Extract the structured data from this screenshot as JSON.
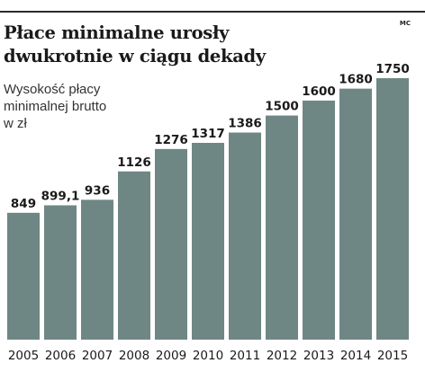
{
  "header": {
    "title_lines": [
      "Płace minimalne urosły",
      "dwukrotnie w ciągu dekady"
    ],
    "subtitle_lines": [
      "Wysokość płacy",
      "minimalnej brutto",
      "w zł"
    ],
    "credit": "MC"
  },
  "chart_data": {
    "type": "bar",
    "title": "Płace minimalne urosły dwukrotnie w ciągu dekady",
    "ylabel": "Wysokość płacy minimalnej brutto w zł",
    "categories": [
      "2005",
      "2006",
      "2007",
      "2008",
      "2009",
      "2010",
      "2011",
      "2012",
      "2013",
      "2014",
      "2015"
    ],
    "values": [
      849,
      899.1,
      936,
      1126,
      1276,
      1317,
      1386,
      1500,
      1600,
      1680,
      1750
    ],
    "value_labels": [
      "849",
      "899,1",
      "936",
      "1126",
      "1276",
      "1317",
      "1386",
      "1500",
      "1600",
      "1680",
      "1750"
    ],
    "ylim": [
      0,
      1750
    ],
    "grid": false,
    "legend": "none",
    "bar_color": "#6f8784"
  }
}
